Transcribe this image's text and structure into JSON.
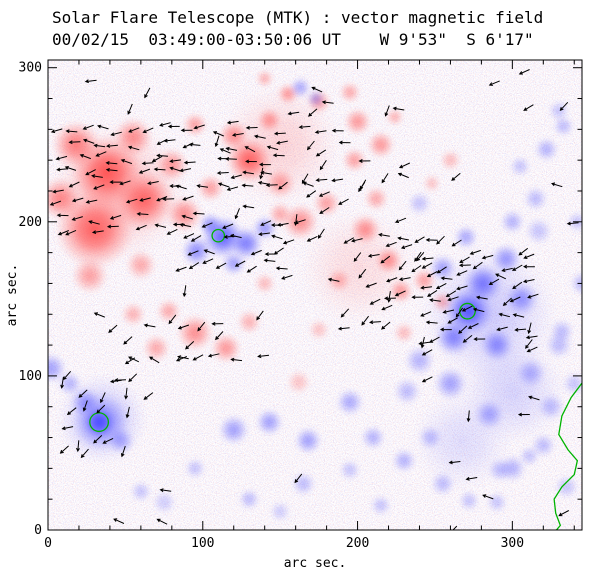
{
  "chart_data": {
    "type": "heatmap",
    "title": "Solar Flare Telescope (MTK) : vector magnetic field",
    "subtitle": "00/02/15  03:49:00-03:50:06 UT    W 9'53\"  S 6'17\"",
    "xlabel": "arc sec.",
    "ylabel": "arc sec.",
    "xlim": [
      0,
      345
    ],
    "ylim": [
      0,
      305
    ],
    "xticks": [
      0,
      100,
      200,
      300
    ],
    "yticks": [
      0,
      100,
      200,
      300
    ],
    "minor_tick": 20,
    "vector_length": 7,
    "colors": {
      "positive_polarity": "#ff4545",
      "negative_polarity": "#4545ff",
      "neutral_contour": "#00b400",
      "vectors": "#000000",
      "axes": "#000000",
      "background": "#ffffff"
    },
    "red_blobs": [
      [
        45,
        220,
        45,
        0.3
      ],
      [
        150,
        250,
        40,
        0.2
      ],
      [
        200,
        170,
        38,
        0.15
      ],
      [
        30,
        195,
        26,
        0.85
      ],
      [
        38,
        232,
        24,
        0.9
      ],
      [
        62,
        214,
        20,
        0.8
      ],
      [
        18,
        250,
        16,
        0.7
      ],
      [
        55,
        255,
        13,
        0.6
      ],
      [
        8,
        215,
        14,
        0.65
      ],
      [
        80,
        237,
        11,
        0.55
      ],
      [
        95,
        263,
        8,
        0.5
      ],
      [
        27,
        165,
        12,
        0.5
      ],
      [
        60,
        172,
        10,
        0.45
      ],
      [
        88,
        205,
        12,
        0.6
      ],
      [
        105,
        222,
        9,
        0.5
      ],
      [
        130,
        240,
        15,
        0.85
      ],
      [
        120,
        256,
        10,
        0.6
      ],
      [
        143,
        266,
        8,
        0.55
      ],
      [
        155,
        283,
        7,
        0.55
      ],
      [
        175,
        278,
        8,
        0.5
      ],
      [
        195,
        284,
        7,
        0.45
      ],
      [
        140,
        293,
        6,
        0.4
      ],
      [
        150,
        225,
        10,
        0.5
      ],
      [
        163,
        200,
        12,
        0.6
      ],
      [
        180,
        212,
        9,
        0.5
      ],
      [
        150,
        205,
        8,
        0.45
      ],
      [
        200,
        265,
        9,
        0.55
      ],
      [
        215,
        250,
        9,
        0.55
      ],
      [
        198,
        240,
        8,
        0.5
      ],
      [
        224,
        268,
        6,
        0.4
      ],
      [
        205,
        195,
        10,
        0.6
      ],
      [
        220,
        175,
        9,
        0.6
      ],
      [
        228,
        155,
        8,
        0.55
      ],
      [
        243,
        162,
        8,
        0.5
      ],
      [
        255,
        148,
        7,
        0.45
      ],
      [
        188,
        162,
        8,
        0.4
      ],
      [
        212,
        215,
        8,
        0.45
      ],
      [
        95,
        128,
        12,
        0.6
      ],
      [
        115,
        118,
        10,
        0.55
      ],
      [
        70,
        118,
        9,
        0.45
      ],
      [
        130,
        135,
        8,
        0.4
      ],
      [
        55,
        140,
        8,
        0.4
      ],
      [
        78,
        142,
        8,
        0.45
      ],
      [
        162,
        96,
        8,
        0.3
      ],
      [
        230,
        128,
        7,
        0.35
      ],
      [
        260,
        240,
        7,
        0.35
      ],
      [
        248,
        225,
        6,
        0.3
      ],
      [
        175,
        130,
        7,
        0.3
      ],
      [
        140,
        160,
        7,
        0.35
      ]
    ],
    "blue_blobs": [
      [
        285,
        140,
        45,
        0.25
      ],
      [
        300,
        90,
        35,
        0.2
      ],
      [
        268,
        58,
        33,
        0.15
      ],
      [
        35,
        72,
        30,
        0.3
      ],
      [
        113,
        190,
        14,
        0.85
      ],
      [
        128,
        186,
        11,
        0.7
      ],
      [
        96,
        181,
        10,
        0.6
      ],
      [
        140,
        196,
        8,
        0.55
      ],
      [
        120,
        173,
        8,
        0.5
      ],
      [
        105,
        198,
        8,
        0.55
      ],
      [
        272,
        142,
        16,
        0.9
      ],
      [
        281,
        160,
        13,
        0.7
      ],
      [
        262,
        125,
        12,
        0.65
      ],
      [
        290,
        120,
        11,
        0.6
      ],
      [
        296,
        176,
        10,
        0.55
      ],
      [
        260,
        95,
        11,
        0.5
      ],
      [
        285,
        75,
        10,
        0.45
      ],
      [
        306,
        150,
        11,
        0.55
      ],
      [
        312,
        102,
        10,
        0.4
      ],
      [
        255,
        170,
        9,
        0.5
      ],
      [
        270,
        190,
        8,
        0.45
      ],
      [
        300,
        200,
        8,
        0.4
      ],
      [
        315,
        215,
        8,
        0.35
      ],
      [
        330,
        120,
        9,
        0.35
      ],
      [
        325,
        80,
        9,
        0.35
      ],
      [
        240,
        110,
        10,
        0.4
      ],
      [
        232,
        90,
        9,
        0.35
      ],
      [
        247,
        60,
        8,
        0.35
      ],
      [
        332,
        129,
        8,
        0.35
      ],
      [
        340,
        95,
        8,
        0.3
      ],
      [
        317,
        194,
        9,
        0.3
      ],
      [
        33,
        70,
        10,
        0.95
      ],
      [
        34,
        70,
        19,
        0.6
      ],
      [
        24,
        83,
        10,
        0.5
      ],
      [
        47,
        58,
        9,
        0.45
      ],
      [
        2,
        105,
        10,
        0.5
      ],
      [
        14,
        95,
        8,
        0.4
      ],
      [
        120,
        65,
        10,
        0.5
      ],
      [
        143,
        70,
        9,
        0.5
      ],
      [
        168,
        58,
        9,
        0.5
      ],
      [
        195,
        83,
        9,
        0.45
      ],
      [
        210,
        60,
        8,
        0.4
      ],
      [
        230,
        45,
        8,
        0.4
      ],
      [
        165,
        30,
        8,
        0.35
      ],
      [
        130,
        20,
        7,
        0.35
      ],
      [
        255,
        30,
        8,
        0.35
      ],
      [
        300,
        40,
        9,
        0.4
      ],
      [
        320,
        55,
        8,
        0.35
      ],
      [
        290,
        18,
        7,
        0.3
      ],
      [
        335,
        28,
        8,
        0.3
      ],
      [
        163,
        287,
        7,
        0.45
      ],
      [
        173,
        280,
        6,
        0.4
      ],
      [
        322,
        247,
        8,
        0.4
      ],
      [
        333,
        262,
        7,
        0.35
      ],
      [
        305,
        236,
        7,
        0.3
      ],
      [
        330,
        272,
        7,
        0.3
      ],
      [
        240,
        212,
        8,
        0.3
      ],
      [
        75,
        18,
        8,
        0.25
      ],
      [
        95,
        40,
        7,
        0.3
      ],
      [
        60,
        25,
        7,
        0.3
      ],
      [
        150,
        12,
        7,
        0.25
      ],
      [
        215,
        16,
        7,
        0.3
      ],
      [
        292,
        39,
        8,
        0.35
      ],
      [
        311,
        48,
        7,
        0.3
      ],
      [
        272,
        19,
        7,
        0.3
      ],
      [
        195,
        39,
        7,
        0.3
      ],
      [
        345,
        160,
        8,
        0.35
      ],
      [
        342,
        200,
        7,
        0.3
      ]
    ],
    "green_contours": {
      "circles": [
        [
          110,
          191,
          4
        ],
        [
          271,
          142,
          5
        ],
        [
          33,
          70,
          6
        ]
      ],
      "neutral_line": [
        [
          347,
          98
        ],
        [
          338,
          86
        ],
        [
          332,
          74
        ],
        [
          330,
          62
        ],
        [
          336,
          52
        ],
        [
          342,
          45
        ],
        [
          340,
          36
        ],
        [
          332,
          28
        ],
        [
          327,
          20
        ],
        [
          328,
          11
        ],
        [
          331,
          3
        ],
        [
          326,
          -3
        ]
      ]
    },
    "vector_clusters": [
      {
        "x0": 8,
        "x1": 105,
        "y0": 196,
        "y1": 266,
        "step": 9,
        "angle": 185,
        "spread": 25,
        "thresh": 0.25
      },
      {
        "x0": 88,
        "x1": 152,
        "y0": 172,
        "y1": 202,
        "step": 9,
        "angle": 190,
        "spread": 30,
        "thresh": 0.3
      },
      {
        "x0": 112,
        "x1": 152,
        "y0": 222,
        "y1": 258,
        "step": 9,
        "angle": 175,
        "spread": 25,
        "thresh": 0.35
      },
      {
        "x0": 155,
        "x1": 235,
        "y0": 190,
        "y1": 285,
        "step": 12,
        "angle": 200,
        "spread": 40,
        "thresh": 0.55
      },
      {
        "x0": 193,
        "x1": 268,
        "y0": 133,
        "y1": 188,
        "step": 9,
        "angle": 205,
        "spread": 30,
        "thresh": 0.4
      },
      {
        "x0": 242,
        "x1": 320,
        "y0": 115,
        "y1": 185,
        "step": 9,
        "angle": 195,
        "spread": 30,
        "thresh": 0.35
      },
      {
        "x0": 12,
        "x1": 62,
        "y0": 48,
        "y1": 98,
        "step": 10,
        "angle": 225,
        "spread": 40,
        "thresh": 0.5
      },
      {
        "x0": 55,
        "x1": 135,
        "y0": 112,
        "y1": 140,
        "step": 11,
        "angle": 200,
        "spread": 35,
        "thresh": 0.5
      },
      {
        "x0": 5,
        "x1": 340,
        "y0": 5,
        "y1": 300,
        "step": 22,
        "angle": 205,
        "spread": 60,
        "thresh": 0.72
      }
    ]
  }
}
